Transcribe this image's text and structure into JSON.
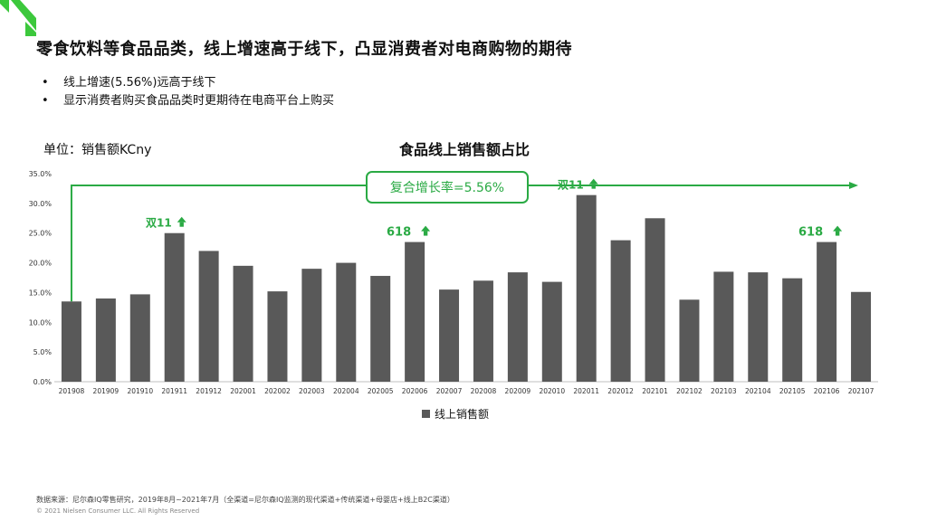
{
  "page": {
    "title": "零食饮料等食品品类，线上增速高于线下，凸显消费者对电商购物的期待",
    "bullets": [
      "线上增速(5.56%)远高于线下",
      "显示消费者购买食品品类时更期待在电商平台上购买"
    ],
    "unit_label": "单位：销售额KCny",
    "cagr_label": "复合增长率=5.56%",
    "footer_source": "数据来源：尼尔森IQ零售研究，2019年8月~2021年7月（全渠道=尼尔森IQ监测的现代渠道+传统渠道+母婴店+线上B2C渠道）",
    "footer_copyright": "© 2021 Nielsen Consumer LLC. All Rights Reserved"
  },
  "colors": {
    "bar": "#595959",
    "accent": "#2aaa44",
    "logo": "#3cc83c"
  },
  "chart_data": {
    "type": "bar",
    "title": "食品线上销售额占比",
    "categories": [
      "201908",
      "201909",
      "201910",
      "201911",
      "201912",
      "202001",
      "202002",
      "202003",
      "202004",
      "202005",
      "202006",
      "202007",
      "202008",
      "202009",
      "202010",
      "202011",
      "202012",
      "202101",
      "202102",
      "202103",
      "202104",
      "202105",
      "202106",
      "202107"
    ],
    "series": [
      {
        "name": "线上销售额",
        "values": [
          13.5,
          14.0,
          14.7,
          25.0,
          22.0,
          19.5,
          15.2,
          19.0,
          20.0,
          17.8,
          23.5,
          15.5,
          17.0,
          18.4,
          16.8,
          31.4,
          23.8,
          27.5,
          13.8,
          18.5,
          18.4,
          17.4,
          23.5,
          15.1
        ]
      }
    ],
    "ylim": [
      0,
      35
    ],
    "yticks": [
      "0.0%",
      "5.0%",
      "10.0%",
      "15.0%",
      "20.0%",
      "25.0%",
      "30.0%",
      "35.0%"
    ],
    "legend": "bottom",
    "grid": false,
    "annotations": [
      {
        "text": "双11",
        "category": "201911",
        "arrow": "up"
      },
      {
        "text": "618",
        "category": "202006",
        "arrow": "up"
      },
      {
        "text": "双11",
        "category": "202011",
        "arrow": "up"
      },
      {
        "text": "618",
        "category": "202106",
        "arrow": "up"
      }
    ]
  }
}
